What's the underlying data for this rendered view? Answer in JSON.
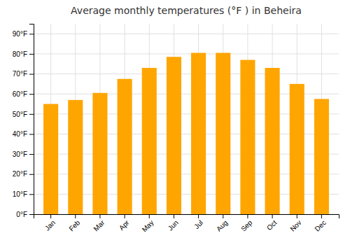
{
  "chart_data": {
    "type": "bar",
    "title": "Average monthly temperatures (°F ) in Beheira",
    "categories": [
      "Jan",
      "Feb",
      "Mar",
      "Apr",
      "May",
      "Jun",
      "Jul",
      "Aug",
      "Sep",
      "Oct",
      "Nov",
      "Dec"
    ],
    "values": [
      55,
      57,
      60.5,
      67.5,
      73,
      78.5,
      80.5,
      80.5,
      77,
      73,
      65,
      57.5
    ],
    "color": "#FFA500",
    "ylim": [
      0,
      95
    ],
    "yticks": [
      {
        "value": 0,
        "label": "0°F"
      },
      {
        "value": 10,
        "label": "10°F"
      },
      {
        "value": 20,
        "label": "20°F"
      },
      {
        "value": 30,
        "label": "30°F"
      },
      {
        "value": 40,
        "label": "40°F"
      },
      {
        "value": 50,
        "label": "50°F"
      },
      {
        "value": 60,
        "label": "60°F"
      },
      {
        "value": 70,
        "label": "70°F"
      },
      {
        "value": 80,
        "label": "80°F"
      },
      {
        "value": 90,
        "label": "90°F"
      }
    ],
    "grid": true
  }
}
